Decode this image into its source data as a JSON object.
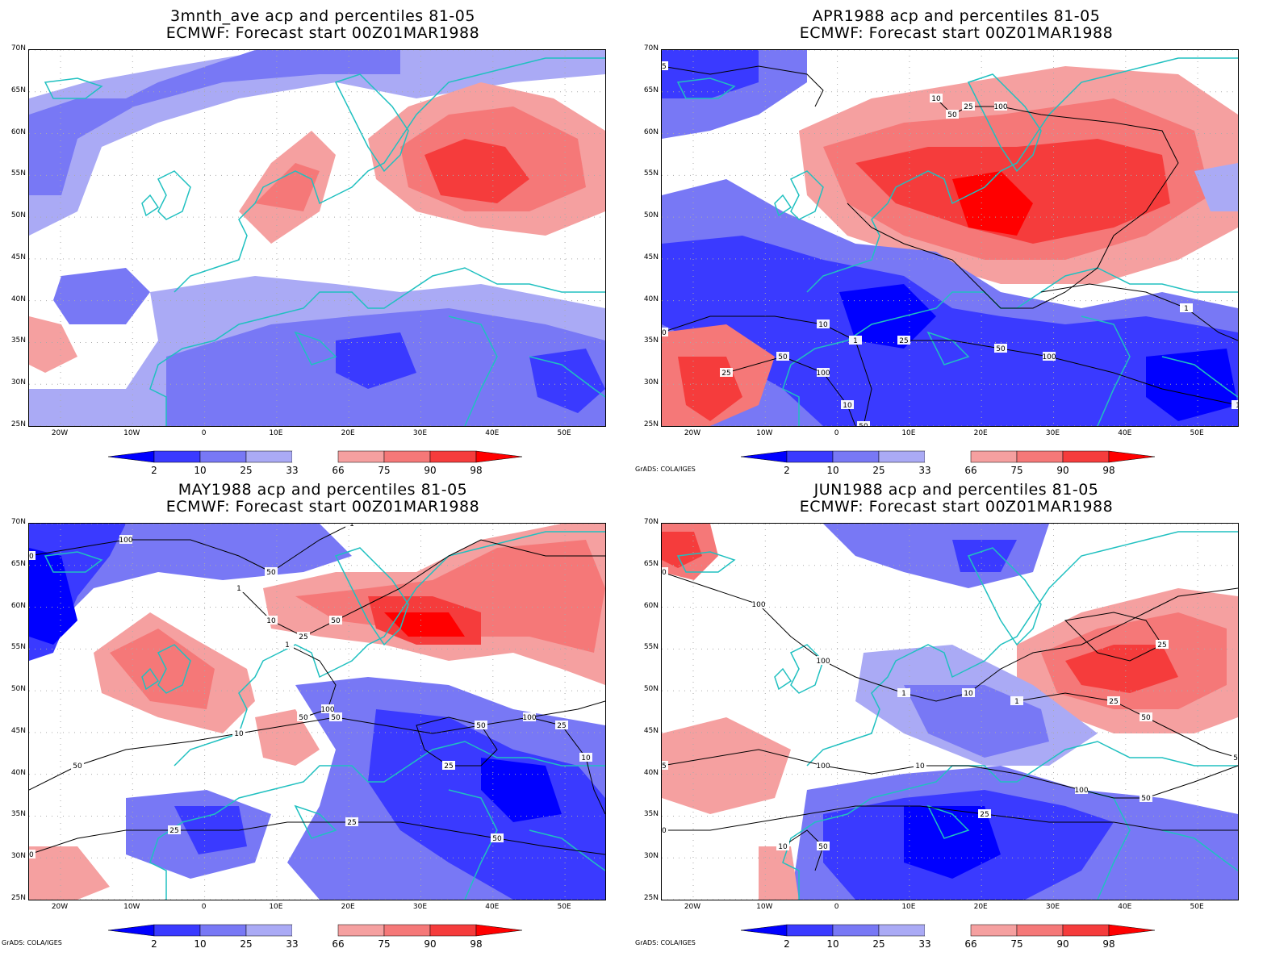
{
  "colors": {
    "b2": "#0000ff",
    "b10": "#3a3aff",
    "b25": "#7878f5",
    "b33": "#aaaaf5",
    "r66": "#f5a0a0",
    "r75": "#f57878",
    "r90": "#f53c3c",
    "r98": "#ff0000",
    "coast": "#20c0c0",
    "contour": "#000000",
    "grid": "#aaaaaa"
  },
  "lat_labels": [
    "70N",
    "65N",
    "60N",
    "55N",
    "50N",
    "45N",
    "40N",
    "35N",
    "30N",
    "25N"
  ],
  "lon_labels": [
    "20W",
    "10W",
    "0",
    "10E",
    "20E",
    "30E",
    "40E",
    "50E"
  ],
  "colorbar_labels": [
    "2",
    "10",
    "25",
    "33",
    "66",
    "75",
    "90",
    "98"
  ],
  "credit": "GrADS: COLA/IGES",
  "panels": [
    {
      "title1": "3mnth_ave acp and percentiles 81-05",
      "title2": "ECMWF: Forecast start 00Z01MAR1988",
      "credit": "",
      "contour_labels": []
    },
    {
      "title1": "APR1988 acp and percentiles 81-05",
      "title2": "ECMWF: Forecast start 00Z01MAR1988",
      "credit": "GrADS: COLA/IGES",
      "contour_labels": [
        "50",
        "100",
        "50",
        "50",
        "100",
        "25",
        "50",
        "25",
        "10",
        "1",
        "25",
        "10",
        "1",
        "50",
        "50",
        "100",
        "10",
        "50",
        "25",
        "10",
        "1",
        "25",
        "50",
        "1"
      ]
    },
    {
      "title1": "MAY1988 acp and percentiles 81-05",
      "title2": "ECMWF: Forecast start 00Z01MAR1988",
      "credit": "GrADS: COLA/IGES",
      "contour_labels": [
        "50",
        "50",
        "50",
        "50",
        "100",
        "100",
        "100",
        "50",
        "25",
        "50",
        "25",
        "10",
        "25",
        "50",
        "100",
        "10",
        "50",
        "25",
        "25",
        "10",
        "1",
        "1",
        "1",
        "10",
        "50"
      ]
    },
    {
      "title1": "JUN1988 acp and percentiles 81-05",
      "title2": "ECMWF: Forecast start 00Z01MAR1988",
      "credit": "GrADS: COLA/IGES",
      "contour_labels": [
        "50",
        "100",
        "50",
        "25",
        "50",
        "50",
        "100",
        "100",
        "100",
        "50",
        "100",
        "50",
        "100",
        "25",
        "25",
        "50",
        "10",
        "10",
        "1",
        "10",
        "10",
        "1",
        "50",
        "25",
        "10",
        "50"
      ]
    }
  ]
}
